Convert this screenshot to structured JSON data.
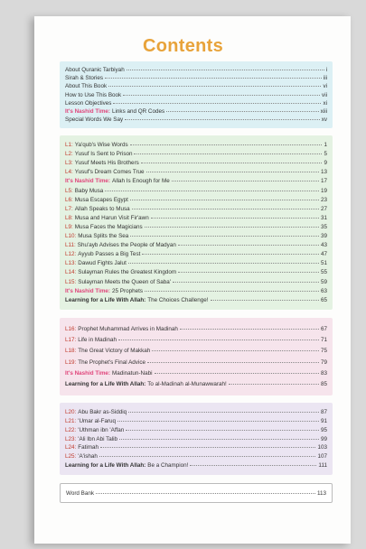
{
  "title": "Contents",
  "sections": [
    {
      "entries": [
        {
          "text": "About Quranic Tarbiyah",
          "page": "i"
        },
        {
          "text": "Sirah & Stories",
          "page": "iii"
        },
        {
          "text": "About This Book",
          "page": "vi"
        },
        {
          "text": "How to Use This Book",
          "page": "vii"
        },
        {
          "text": "Lesson Objectives",
          "page": "xi"
        },
        {
          "prefix": "It's Nashid Time:",
          "text": "Links and QR Codes",
          "page": "xiii"
        },
        {
          "text": "Special Words We Say",
          "page": "xv"
        }
      ]
    },
    {
      "entries": [
        {
          "prefix": "L1:",
          "text": "Ya'qub's Wise Words",
          "page": "1"
        },
        {
          "prefix": "L2:",
          "text": "Yusuf Is Sent to Prison",
          "page": "5"
        },
        {
          "prefix": "L3:",
          "text": "Yusuf Meets His Brothers",
          "page": "9"
        },
        {
          "prefix": "L4:",
          "text": "Yusuf's Dream Comes True",
          "page": "13"
        },
        {
          "prefix": "It's Nashid Time:",
          "text": "Allah Is Enough for Me",
          "page": "17"
        },
        {
          "prefix": "L5:",
          "text": "Baby Musa",
          "page": "19"
        },
        {
          "prefix": "L6:",
          "text": "Musa Escapes Egypt",
          "page": "23"
        },
        {
          "prefix": "L7:",
          "text": "Allah Speaks to Musa",
          "page": "27"
        },
        {
          "prefix": "L8:",
          "text": "Musa and Harun Visit Fir'awn",
          "page": "31"
        },
        {
          "prefix": "L9:",
          "text": "Musa Faces the Magicians",
          "page": "35"
        },
        {
          "prefix": "L10:",
          "text": "Musa Splits the Sea",
          "page": "39"
        },
        {
          "prefix": "L11:",
          "text": "Shu'ayb Advises the People of Madyan",
          "page": "43"
        },
        {
          "prefix": "L12:",
          "text": "Ayyub Passes a Big Test",
          "page": "47"
        },
        {
          "prefix": "L13:",
          "text": "Dawud Fights Jalut",
          "page": "51"
        },
        {
          "prefix": "L14:",
          "text": "Sulayman Rules the Greatest Kingdom",
          "page": "55"
        },
        {
          "prefix": "L15:",
          "text": "Sulayman Meets the Queen of Saba'",
          "page": "59"
        },
        {
          "prefix": "It's Nashid Time:",
          "text": "25 Prophets",
          "page": "63"
        },
        {
          "prefix": "Learning for a Life With Allah:",
          "text": "The Choices Challenge!",
          "page": "65"
        }
      ]
    },
    {
      "entries": [
        {
          "prefix": "L16:",
          "text": "Prophet Muhammad Arrives in Madinah",
          "page": "67"
        },
        {
          "prefix": "L17:",
          "text": "Life in Madinah",
          "page": "71"
        },
        {
          "prefix": "L18:",
          "text": "The Great Victory of Makkah",
          "page": "75"
        },
        {
          "prefix": "L19:",
          "text": "The Prophet's Final Advice",
          "page": "79"
        },
        {
          "prefix": "It's Nashid Time:",
          "text": "Madinatun-Nabi",
          "page": "83"
        },
        {
          "prefix": "Learning for a Life With Allah:",
          "text": "To al-Madinah al-Munawwarah!",
          "page": "85"
        }
      ]
    },
    {
      "entries": [
        {
          "prefix": "L20:",
          "text": "Abu Bakr as-Siddiq",
          "page": "87"
        },
        {
          "prefix": "L21:",
          "text": "'Umar al-Faruq",
          "page": "91"
        },
        {
          "prefix": "L22:",
          "text": "'Uthman ibn 'Affan",
          "page": "95"
        },
        {
          "prefix": "L23:",
          "text": "'Ali Ibn Abi Talib",
          "page": "99"
        },
        {
          "prefix": "L24:",
          "text": "Fatimah",
          "page": "103"
        },
        {
          "prefix": "L25:",
          "text": "'A'ishah",
          "page": "107"
        },
        {
          "prefix": "Learning for a Life With Allah:",
          "text": "Be a Champion!",
          "page": "111"
        }
      ]
    },
    {
      "entries": [
        {
          "text": "Word Bank",
          "page": "113"
        }
      ]
    }
  ]
}
